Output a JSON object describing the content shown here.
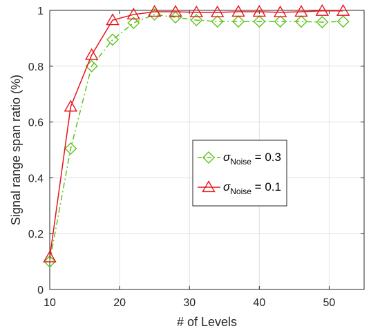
{
  "chart_data": {
    "type": "line",
    "xlabel": "# of Levels",
    "ylabel": "Signal range span ratio (%)",
    "xlim": [
      10,
      55
    ],
    "ylim": [
      0,
      1
    ],
    "xticks": [
      10,
      20,
      30,
      40,
      50
    ],
    "yticks": [
      0,
      0.2,
      0.4,
      0.6,
      0.8,
      1
    ],
    "ytick_labels": [
      "0",
      "0.2",
      "0.4",
      "0.6",
      "0.8",
      "1"
    ],
    "grid": true,
    "legend_position": "center-right",
    "x": [
      10,
      13,
      16,
      19,
      22,
      25,
      28,
      31,
      34,
      37,
      40,
      43,
      46,
      49,
      52
    ],
    "series": [
      {
        "legend_symbol": "σ",
        "legend_sub": "Noise",
        "legend_value": " = 0.3",
        "color": "#5bc41a",
        "line_style": "dash-dot",
        "marker": "diamond",
        "values": [
          0.1,
          0.505,
          0.8,
          0.895,
          0.955,
          0.985,
          0.975,
          0.965,
          0.96,
          0.96,
          0.96,
          0.96,
          0.96,
          0.958,
          0.96
        ]
      },
      {
        "legend_symbol": "σ",
        "legend_sub": "Noise",
        "legend_value": " = 0.1",
        "color": "#e8131a",
        "line_style": "solid",
        "marker": "triangle",
        "values": [
          0.115,
          0.655,
          0.84,
          0.965,
          0.985,
          0.995,
          0.995,
          0.993,
          0.993,
          0.995,
          0.995,
          0.993,
          0.995,
          0.998,
          0.998
        ]
      }
    ]
  }
}
